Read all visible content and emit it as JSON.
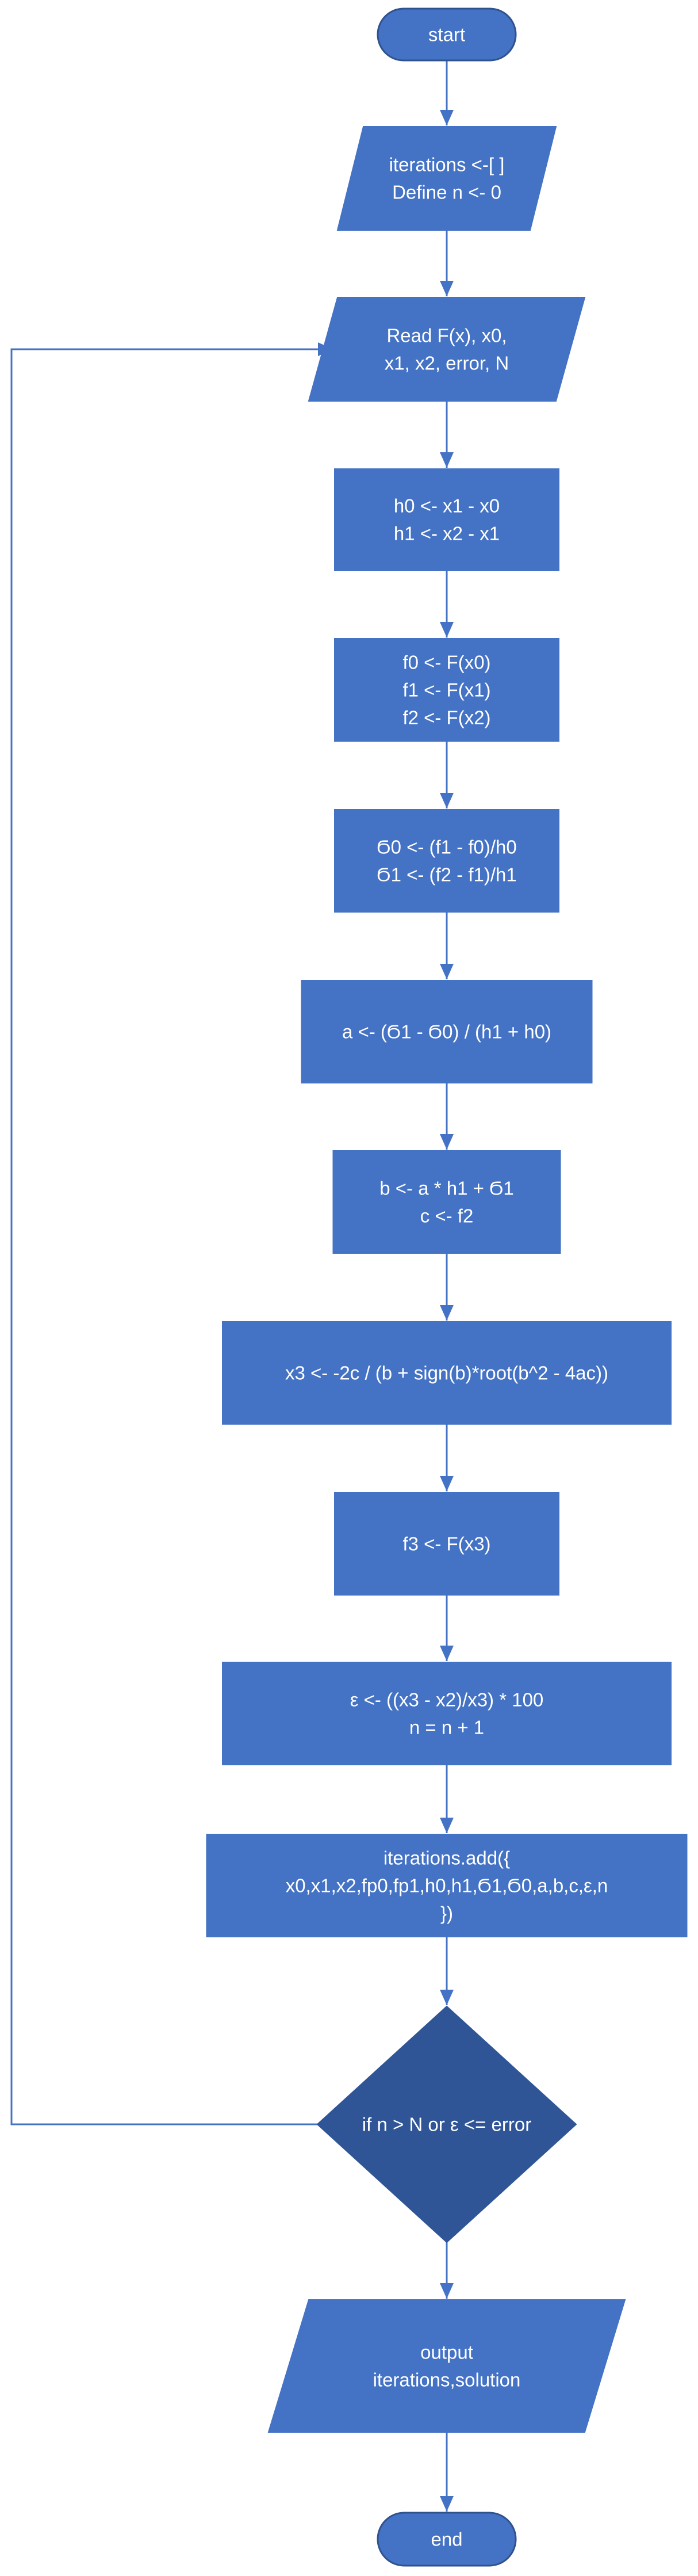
{
  "flowchart": {
    "colors": {
      "box_fill": "#4472C4",
      "box_stroke": "#2F528F",
      "decision_fill": "#2F5597",
      "arrow": "#4472C4",
      "text": "#FFFFFF"
    },
    "nodes": {
      "start": {
        "shape": "terminator",
        "lines": [
          "start"
        ]
      },
      "init": {
        "shape": "parallelogram",
        "lines": [
          "iterations <-[ ]",
          "Define n <- 0"
        ]
      },
      "read": {
        "shape": "parallelogram",
        "lines": [
          "Read  F(x), x0,",
          "x1, x2, error, N"
        ]
      },
      "h": {
        "shape": "process",
        "lines": [
          "h0 <- x1 - x0",
          "h1 <- x2 - x1"
        ]
      },
      "f": {
        "shape": "process",
        "lines": [
          "f0 <- F(x0)",
          "f1 <- F(x1)",
          "f2 <- F(x2)"
        ]
      },
      "sigma": {
        "shape": "process",
        "lines": [
          "Ϭ0 <- (f1 - f0)/h0",
          "Ϭ1 <- (f2 - f1)/h1"
        ]
      },
      "a": {
        "shape": "process",
        "lines": [
          "a <- (Ϭ1 - Ϭ0) / (h1 + h0)"
        ]
      },
      "bc": {
        "shape": "process",
        "lines": [
          "b <- a * h1 + Ϭ1",
          "c <- f2"
        ]
      },
      "x3": {
        "shape": "process",
        "lines": [
          "x3 <- -2c / (b + sign(b)*root(b^2 - 4ac))"
        ]
      },
      "f3": {
        "shape": "process",
        "lines": [
          "f3 <- F(x3)"
        ]
      },
      "err": {
        "shape": "process",
        "lines": [
          "ε <- ((x3 - x2)/x3) * 100",
          "n = n + 1"
        ]
      },
      "add": {
        "shape": "process",
        "lines": [
          "iterations.add({",
          "x0,x1,x2,fp0,fp1,h0,h1,Ϭ1,Ϭ0,a,b,c,ε,n",
          "})"
        ]
      },
      "decision": {
        "shape": "decision",
        "lines": [
          "if n > N or ε <= error"
        ]
      },
      "output": {
        "shape": "parallelogram",
        "lines": [
          "output",
          "iterations,solution"
        ]
      },
      "end": {
        "shape": "terminator",
        "lines": [
          "end"
        ]
      }
    }
  }
}
